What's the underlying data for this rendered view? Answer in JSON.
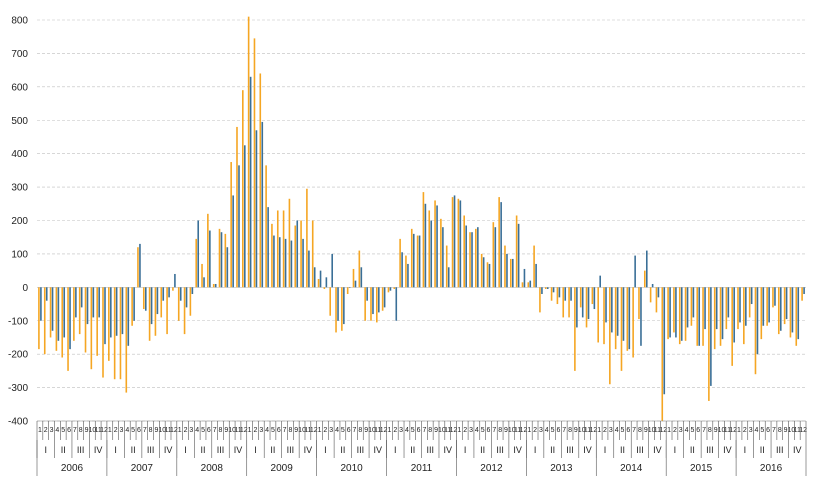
{
  "chart_data": {
    "type": "bar",
    "title": "",
    "xlabel": "",
    "ylabel": "",
    "ylim": [
      -400,
      800
    ],
    "yticks": [
      -400,
      -300,
      -200,
      -100,
      0,
      100,
      200,
      300,
      400,
      500,
      600,
      700,
      800
    ],
    "grid": true,
    "years": [
      "2006",
      "2007",
      "2008",
      "2009",
      "2010",
      "2011",
      "2012",
      "2013",
      "2014",
      "2015",
      "2016"
    ],
    "quarters": [
      "I",
      "II",
      "III",
      "IV"
    ],
    "month_tick_labels": [
      "1",
      "2",
      "3",
      "4",
      "5",
      "6",
      "7",
      "8",
      "9",
      "10",
      "11",
      "12"
    ],
    "colors": {
      "series_1": "#f5a623",
      "series_2": "#3a6f97",
      "grid": "#bfbfbf"
    },
    "series": [
      {
        "values": [
          -185,
          -200,
          -150,
          -190,
          -210,
          -250,
          -160,
          -140,
          -195,
          -245,
          -205,
          -270,
          -220,
          -275,
          -275,
          -315,
          -115,
          120,
          -65,
          -160,
          -145,
          -90,
          -140,
          -10,
          -100,
          -140,
          -85,
          145,
          70,
          220,
          10,
          175,
          160,
          375,
          480,
          590,
          810,
          745,
          640,
          365,
          190,
          230,
          230,
          265,
          185,
          200,
          295,
          200,
          25,
          -5,
          -85,
          -135,
          -130,
          -20,
          55,
          110,
          -100,
          -100,
          -105,
          -70,
          -15,
          -5,
          145,
          95,
          175,
          155,
          285,
          230,
          260,
          205,
          125,
          270,
          265,
          215,
          165,
          175,
          100,
          75,
          195,
          270,
          125,
          85,
          215,
          15,
          15,
          125,
          -75,
          -5,
          -40,
          -50,
          -90,
          -90,
          -250,
          -60,
          -120,
          -50,
          -165,
          -170,
          -290,
          -185,
          -250,
          -190,
          -210,
          -95,
          50,
          -45,
          -75,
          -400,
          -155,
          -135,
          -170,
          -160,
          -115,
          -175,
          -175,
          -340,
          -185,
          -175,
          -125,
          -235,
          -125,
          -170,
          -90,
          -260,
          -155,
          -115,
          -60,
          -140,
          -110,
          -150,
          -175,
          -40
        ],
        "values_note": "monthly values Jan 2006 - Dec 2016"
      },
      {
        "values": [
          -100,
          -40,
          -130,
          -160,
          -150,
          -185,
          -90,
          -60,
          -110,
          -90,
          -90,
          -170,
          -150,
          -145,
          -140,
          -175,
          -100,
          130,
          -70,
          -110,
          -80,
          -40,
          -30,
          40,
          -40,
          -60,
          -20,
          200,
          30,
          170,
          10,
          165,
          120,
          275,
          365,
          425,
          630,
          470,
          495,
          240,
          155,
          150,
          145,
          140,
          200,
          145,
          110,
          60,
          50,
          30,
          100,
          -100,
          -110,
          0,
          20,
          60,
          -40,
          -80,
          -75,
          -60,
          -10,
          -100,
          105,
          70,
          160,
          155,
          250,
          200,
          245,
          180,
          60,
          275,
          260,
          185,
          165,
          180,
          90,
          70,
          180,
          255,
          100,
          85,
          190,
          55,
          20,
          70,
          -20,
          -5,
          -15,
          -30,
          -40,
          -40,
          -120,
          -90,
          -95,
          -65,
          35,
          -105,
          -135,
          -145,
          -160,
          -185,
          95,
          -175,
          110,
          10,
          -30,
          -320,
          -150,
          -150,
          -160,
          -120,
          -90,
          -175,
          -125,
          -295,
          -125,
          -155,
          -90,
          -165,
          -105,
          -115,
          -50,
          -200,
          -115,
          -105,
          -55,
          -130,
          -95,
          -135,
          -155,
          -20
        ],
        "values_note": "monthly values Jan 2006 - Dec 2016"
      }
    ]
  }
}
